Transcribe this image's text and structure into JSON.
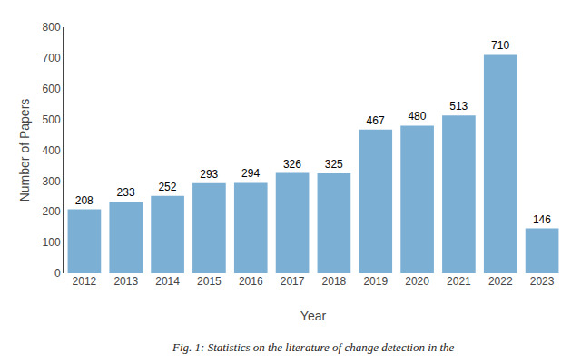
{
  "chart_data": {
    "type": "bar",
    "categories": [
      "2012",
      "2013",
      "2014",
      "2015",
      "2016",
      "2017",
      "2018",
      "2019",
      "2020",
      "2021",
      "2022",
      "2023"
    ],
    "values": [
      208,
      233,
      252,
      293,
      294,
      326,
      325,
      467,
      480,
      513,
      710,
      146
    ],
    "color": "#7bafd4",
    "xlabel": "Year",
    "ylabel": "Number of Papers",
    "ylim": [
      0,
      800
    ],
    "yticks": [
      0,
      100,
      200,
      300,
      400,
      500,
      600,
      700,
      800
    ],
    "grid": false,
    "data_labels": true,
    "caption": "Fig. 1: Statistics on the literature of change detection in the"
  }
}
